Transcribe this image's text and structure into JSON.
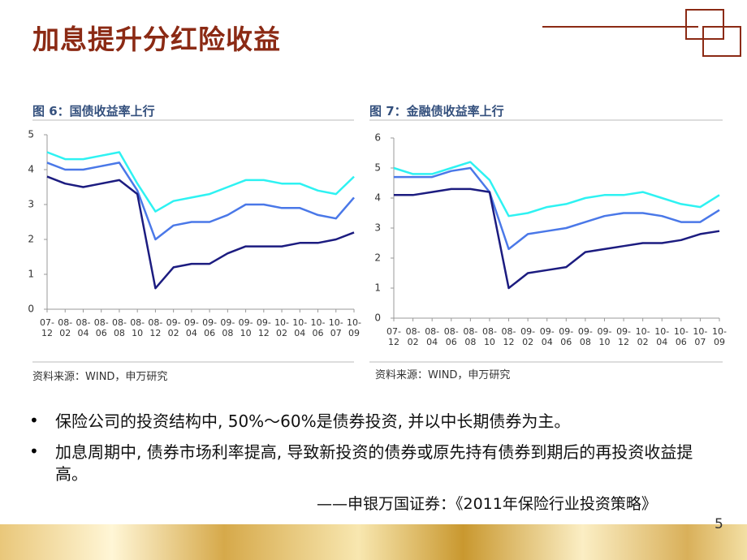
{
  "header": {
    "title": "加息提升分红险收益"
  },
  "chart_data": [
    {
      "type": "line",
      "title": "图 6：国债收益率上行",
      "source": "资料来源：WIND，申万研究",
      "categories": [
        "07-12",
        "08-02",
        "08-04",
        "08-06",
        "08-08",
        "08-10",
        "08-12",
        "09-02",
        "09-04",
        "09-06",
        "09-08",
        "09-10",
        "09-12",
        "10-02",
        "10-04",
        "10-06",
        "10-07",
        "10-09"
      ],
      "ylim": [
        0,
        5
      ],
      "yticks": [
        0,
        1,
        2,
        3,
        4,
        5
      ],
      "series": [
        {
          "color": "#2ef2f2",
          "values": [
            4.5,
            4.3,
            4.3,
            4.4,
            4.5,
            3.6,
            2.8,
            3.1,
            3.2,
            3.3,
            3.5,
            3.7,
            3.7,
            3.6,
            3.6,
            3.4,
            3.3,
            3.8
          ]
        },
        {
          "color": "#4a78e8",
          "values": [
            4.2,
            4.0,
            4.0,
            4.1,
            4.2,
            3.4,
            2.0,
            2.4,
            2.5,
            2.5,
            2.7,
            3.0,
            3.0,
            2.9,
            2.9,
            2.7,
            2.6,
            3.2
          ]
        },
        {
          "color": "#1c1c80",
          "values": [
            3.8,
            3.6,
            3.5,
            3.6,
            3.7,
            3.3,
            0.6,
            1.2,
            1.3,
            1.3,
            1.6,
            1.8,
            1.8,
            1.8,
            1.9,
            1.9,
            2.0,
            2.2
          ]
        }
      ]
    },
    {
      "type": "line",
      "title": "图 7：金融债收益率上行",
      "source": "资料来源：WIND，申万研究",
      "categories": [
        "07-12",
        "08-02",
        "08-04",
        "08-06",
        "08-08",
        "08-10",
        "08-12",
        "09-02",
        "09-04",
        "09-06",
        "09-08",
        "09-10",
        "09-12",
        "10-02",
        "10-04",
        "10-06",
        "10-07",
        "10-09"
      ],
      "ylim": [
        0,
        6
      ],
      "yticks": [
        0,
        1,
        2,
        3,
        4,
        5,
        6
      ],
      "series": [
        {
          "color": "#2ef2f2",
          "values": [
            5.0,
            4.8,
            4.8,
            5.0,
            5.2,
            4.6,
            3.4,
            3.5,
            3.7,
            3.8,
            4.0,
            4.1,
            4.1,
            4.2,
            4.0,
            3.8,
            3.7,
            4.1
          ]
        },
        {
          "color": "#4a78e8",
          "values": [
            4.7,
            4.7,
            4.7,
            4.9,
            5.0,
            4.2,
            2.3,
            2.8,
            2.9,
            3.0,
            3.2,
            3.4,
            3.5,
            3.5,
            3.4,
            3.2,
            3.2,
            3.6
          ]
        },
        {
          "color": "#1c1c80",
          "values": [
            4.1,
            4.1,
            4.2,
            4.3,
            4.3,
            4.2,
            1.0,
            1.5,
            1.6,
            1.7,
            2.2,
            2.3,
            2.4,
            2.5,
            2.5,
            2.6,
            2.8,
            2.9
          ]
        }
      ]
    }
  ],
  "bullets": [
    "保险公司的投资结构中, 50%～60%是债券投资, 并以中长期债券为主。",
    "加息周期中, 债券市场利率提高, 导致新投资的债券或原先持有债券到期后的再投资收益提高。"
  ],
  "citation": "——申银万国证券：《2011年保险行业投资策略》",
  "page_number": "5"
}
